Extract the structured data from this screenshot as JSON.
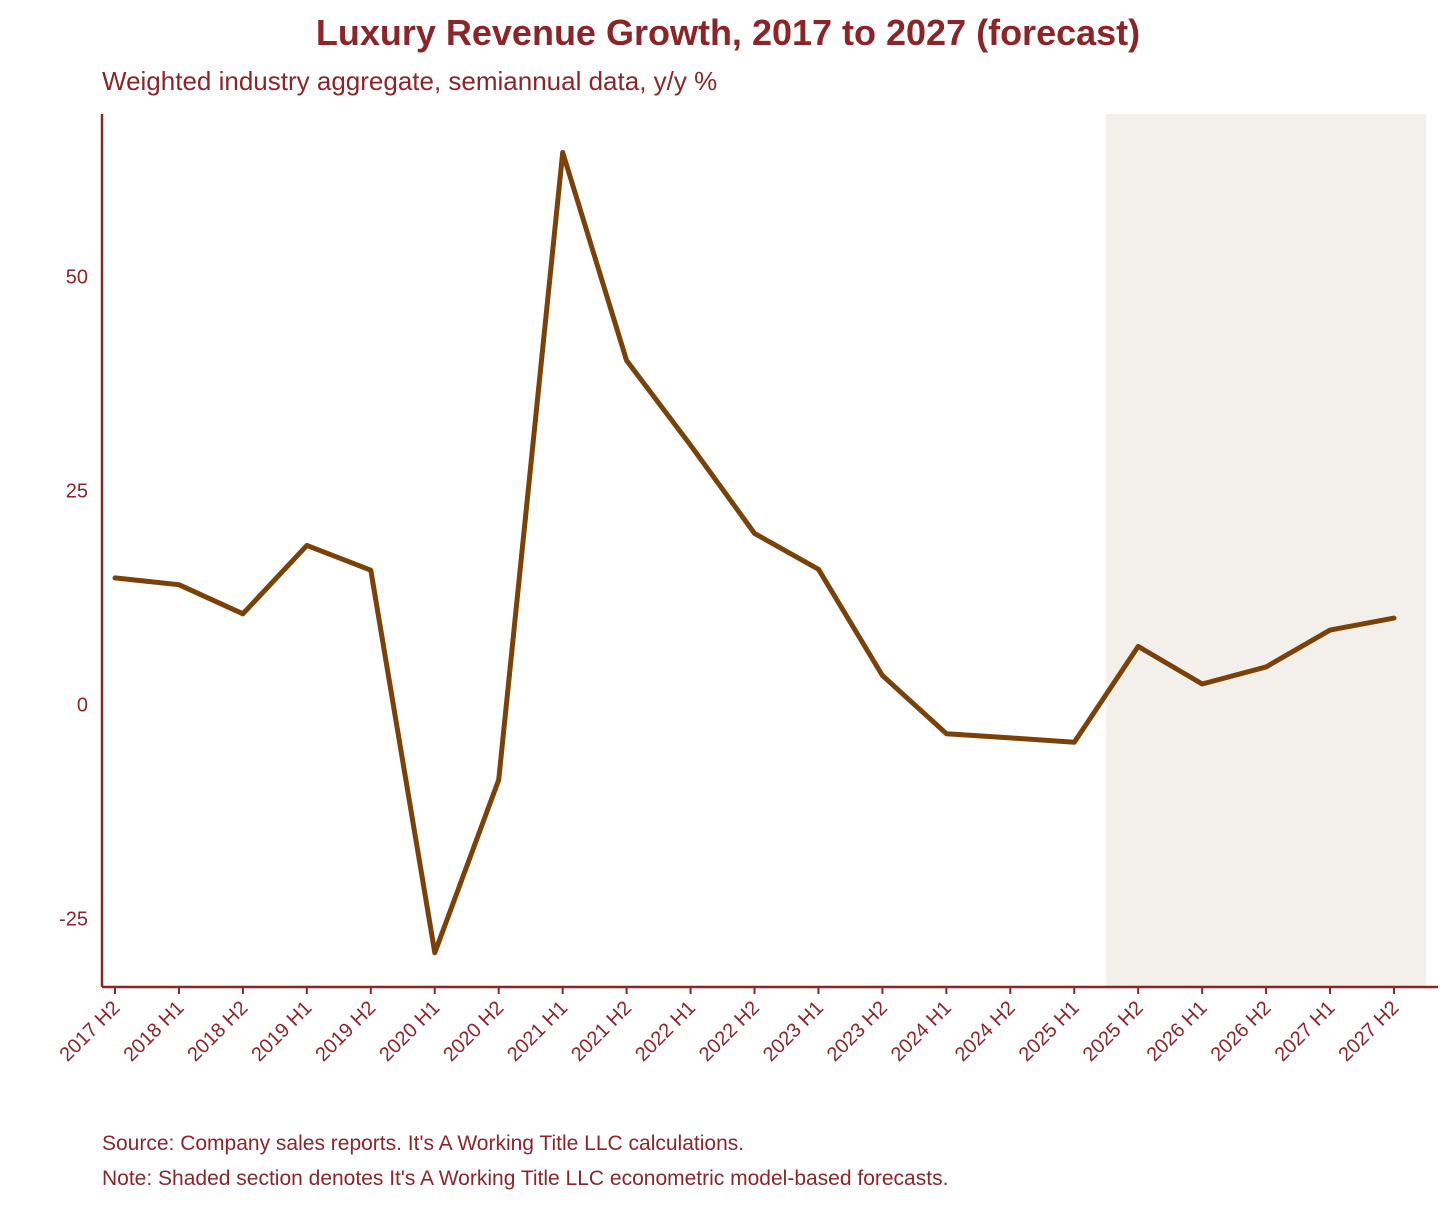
{
  "chart_data": {
    "type": "line",
    "title": "Luxury Revenue Growth, 2017 to 2027 (forecast)",
    "subtitle": "Weighted industry aggregate, semiannual data, y/y %",
    "categories": [
      "2017 H2",
      "2018 H1",
      "2018 H2",
      "2019 H1",
      "2019 H2",
      "2020 H1",
      "2020 H2",
      "2021 H1",
      "2021 H2",
      "2022 H1",
      "2022 H2",
      "2023 H1",
      "2023 H2",
      "2024 H1",
      "2024 H2",
      "2025 H1",
      "2025 H2",
      "2026 H1",
      "2026 H2",
      "2027 H1",
      "2027 H2"
    ],
    "series": [
      {
        "values": [
          14.8,
          14.0,
          10.6,
          18.6,
          15.7,
          -29.0,
          -8.8,
          64.5,
          40.2,
          30.3,
          20.0,
          15.8,
          3.4,
          -3.4,
          -3.9,
          -4.4,
          6.8,
          2.4,
          4.4,
          8.7,
          10.1
        ]
      }
    ],
    "ylim": [
      -33,
      69
    ],
    "yticks": [
      -25,
      0,
      25,
      50
    ],
    "forecast_start": "2025 H2",
    "grid": false,
    "colors": {
      "line": "#7A4208",
      "text": "#8B2528",
      "axis": "#8B2528",
      "forecast_shade": "#F3F0EB"
    },
    "source": "Source: Company sales reports. It's A Working Title LLC calculations.",
    "note": "Note: Shaded section denotes It's A Working Title LLC econometric model-based forecasts."
  }
}
